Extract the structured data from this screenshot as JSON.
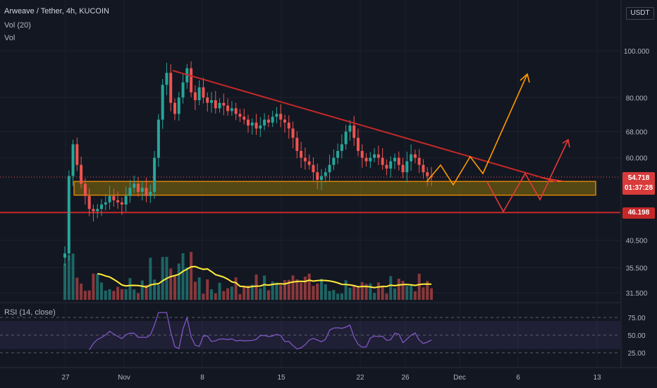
{
  "header": {
    "title": "Arweave / Tether, 4h, KUCOIN",
    "vol20_label": "Vol (20)",
    "vol_label": "Vol",
    "currency": "USDT"
  },
  "rsi_label": "RSI (14, close)",
  "badges": {
    "current_price": "54.718",
    "countdown": "01:37:28",
    "support": "46.198"
  },
  "colors": {
    "background": "#131722",
    "up": "#26a69a",
    "down": "#ef5350",
    "trendline": "#c62828",
    "zone_fill": "#6b5a12",
    "zone_border": "#ff9800",
    "projection_orange": "#ff9800",
    "projection_red": "#e53935",
    "volume_ma": "#ffeb3b",
    "rsi_line": "#7e57c2"
  },
  "chart_data": [
    {
      "type": "candlestick",
      "title": "Arweave / Tether, 4h, KUCOIN",
      "price_axis": {
        "scale": "log",
        "ticks": [
          "100.000",
          "80.000",
          "68.000",
          "60.000",
          "40.500",
          "35.500",
          "31.500"
        ],
        "tick_values": [
          100,
          80,
          68,
          60,
          40.5,
          35.5,
          31.5
        ]
      },
      "time_axis": {
        "ticks": [
          "27",
          "Nov",
          "8",
          "15",
          "22",
          "26",
          "Dec",
          "6",
          "13"
        ]
      },
      "ohlc_path_close": [
        38,
        55,
        64,
        58,
        53,
        50,
        47,
        46.5,
        47,
        48,
        48.5,
        50,
        49,
        48.5,
        48,
        50,
        52,
        53,
        51,
        52,
        50,
        51,
        60,
        72,
        85,
        90,
        78,
        74,
        80,
        86,
        92,
        82,
        79,
        84,
        80,
        78,
        79,
        76,
        78,
        77,
        75,
        76,
        74,
        73,
        72,
        70,
        71,
        69,
        70,
        72,
        71,
        73,
        74,
        72,
        71,
        69,
        66,
        62,
        60,
        59,
        58,
        56,
        54,
        55,
        56,
        58,
        60,
        62,
        64,
        68,
        70,
        66,
        62,
        60,
        59,
        60,
        61,
        60,
        58,
        57,
        59,
        60,
        58,
        56,
        59,
        61,
        60,
        58,
        56,
        55,
        54.7
      ],
      "current_price": 54.718,
      "support_level": 46.198,
      "zone": {
        "low": 50.2,
        "high": 53.6
      },
      "trendline": {
        "start_price": 91,
        "end_price": 53.5
      }
    },
    {
      "type": "bar",
      "name": "Vol (20)",
      "note_ma": "Vol (20)"
    },
    {
      "type": "line",
      "name": "RSI (14, close)",
      "y_ticks": [
        "75.00",
        "50.00",
        "25.00"
      ],
      "y_values": [
        75,
        50,
        25
      ],
      "band": [
        30,
        70
      ]
    }
  ]
}
